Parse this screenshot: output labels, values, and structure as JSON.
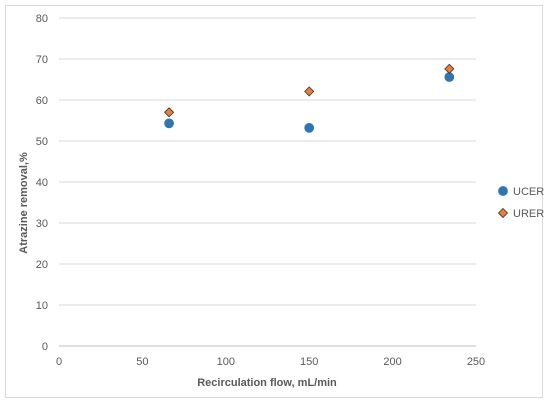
{
  "chart_data": {
    "type": "scatter",
    "xlabel": "Recirculation flow, mL/min",
    "ylabel": "Atrazine removal,%",
    "xlim": [
      0,
      250
    ],
    "ylim": [
      0,
      80
    ],
    "xticks": [
      0,
      50,
      100,
      150,
      200,
      250
    ],
    "yticks": [
      0,
      10,
      20,
      30,
      40,
      50,
      60,
      70,
      80
    ],
    "grid": "horizontal",
    "legend_position": "right",
    "series": [
      {
        "name": "UCER",
        "marker": "circle",
        "color": "#2e75b6",
        "points": [
          {
            "x": 66,
            "y": 54.3
          },
          {
            "x": 150,
            "y": 53.2
          },
          {
            "x": 234,
            "y": 65.6
          }
        ]
      },
      {
        "name": "URER",
        "marker": "diamond",
        "color": "#ed7d31",
        "points": [
          {
            "x": 66,
            "y": 57.0
          },
          {
            "x": 150,
            "y": 62.1
          },
          {
            "x": 234,
            "y": 67.6
          }
        ]
      }
    ]
  }
}
